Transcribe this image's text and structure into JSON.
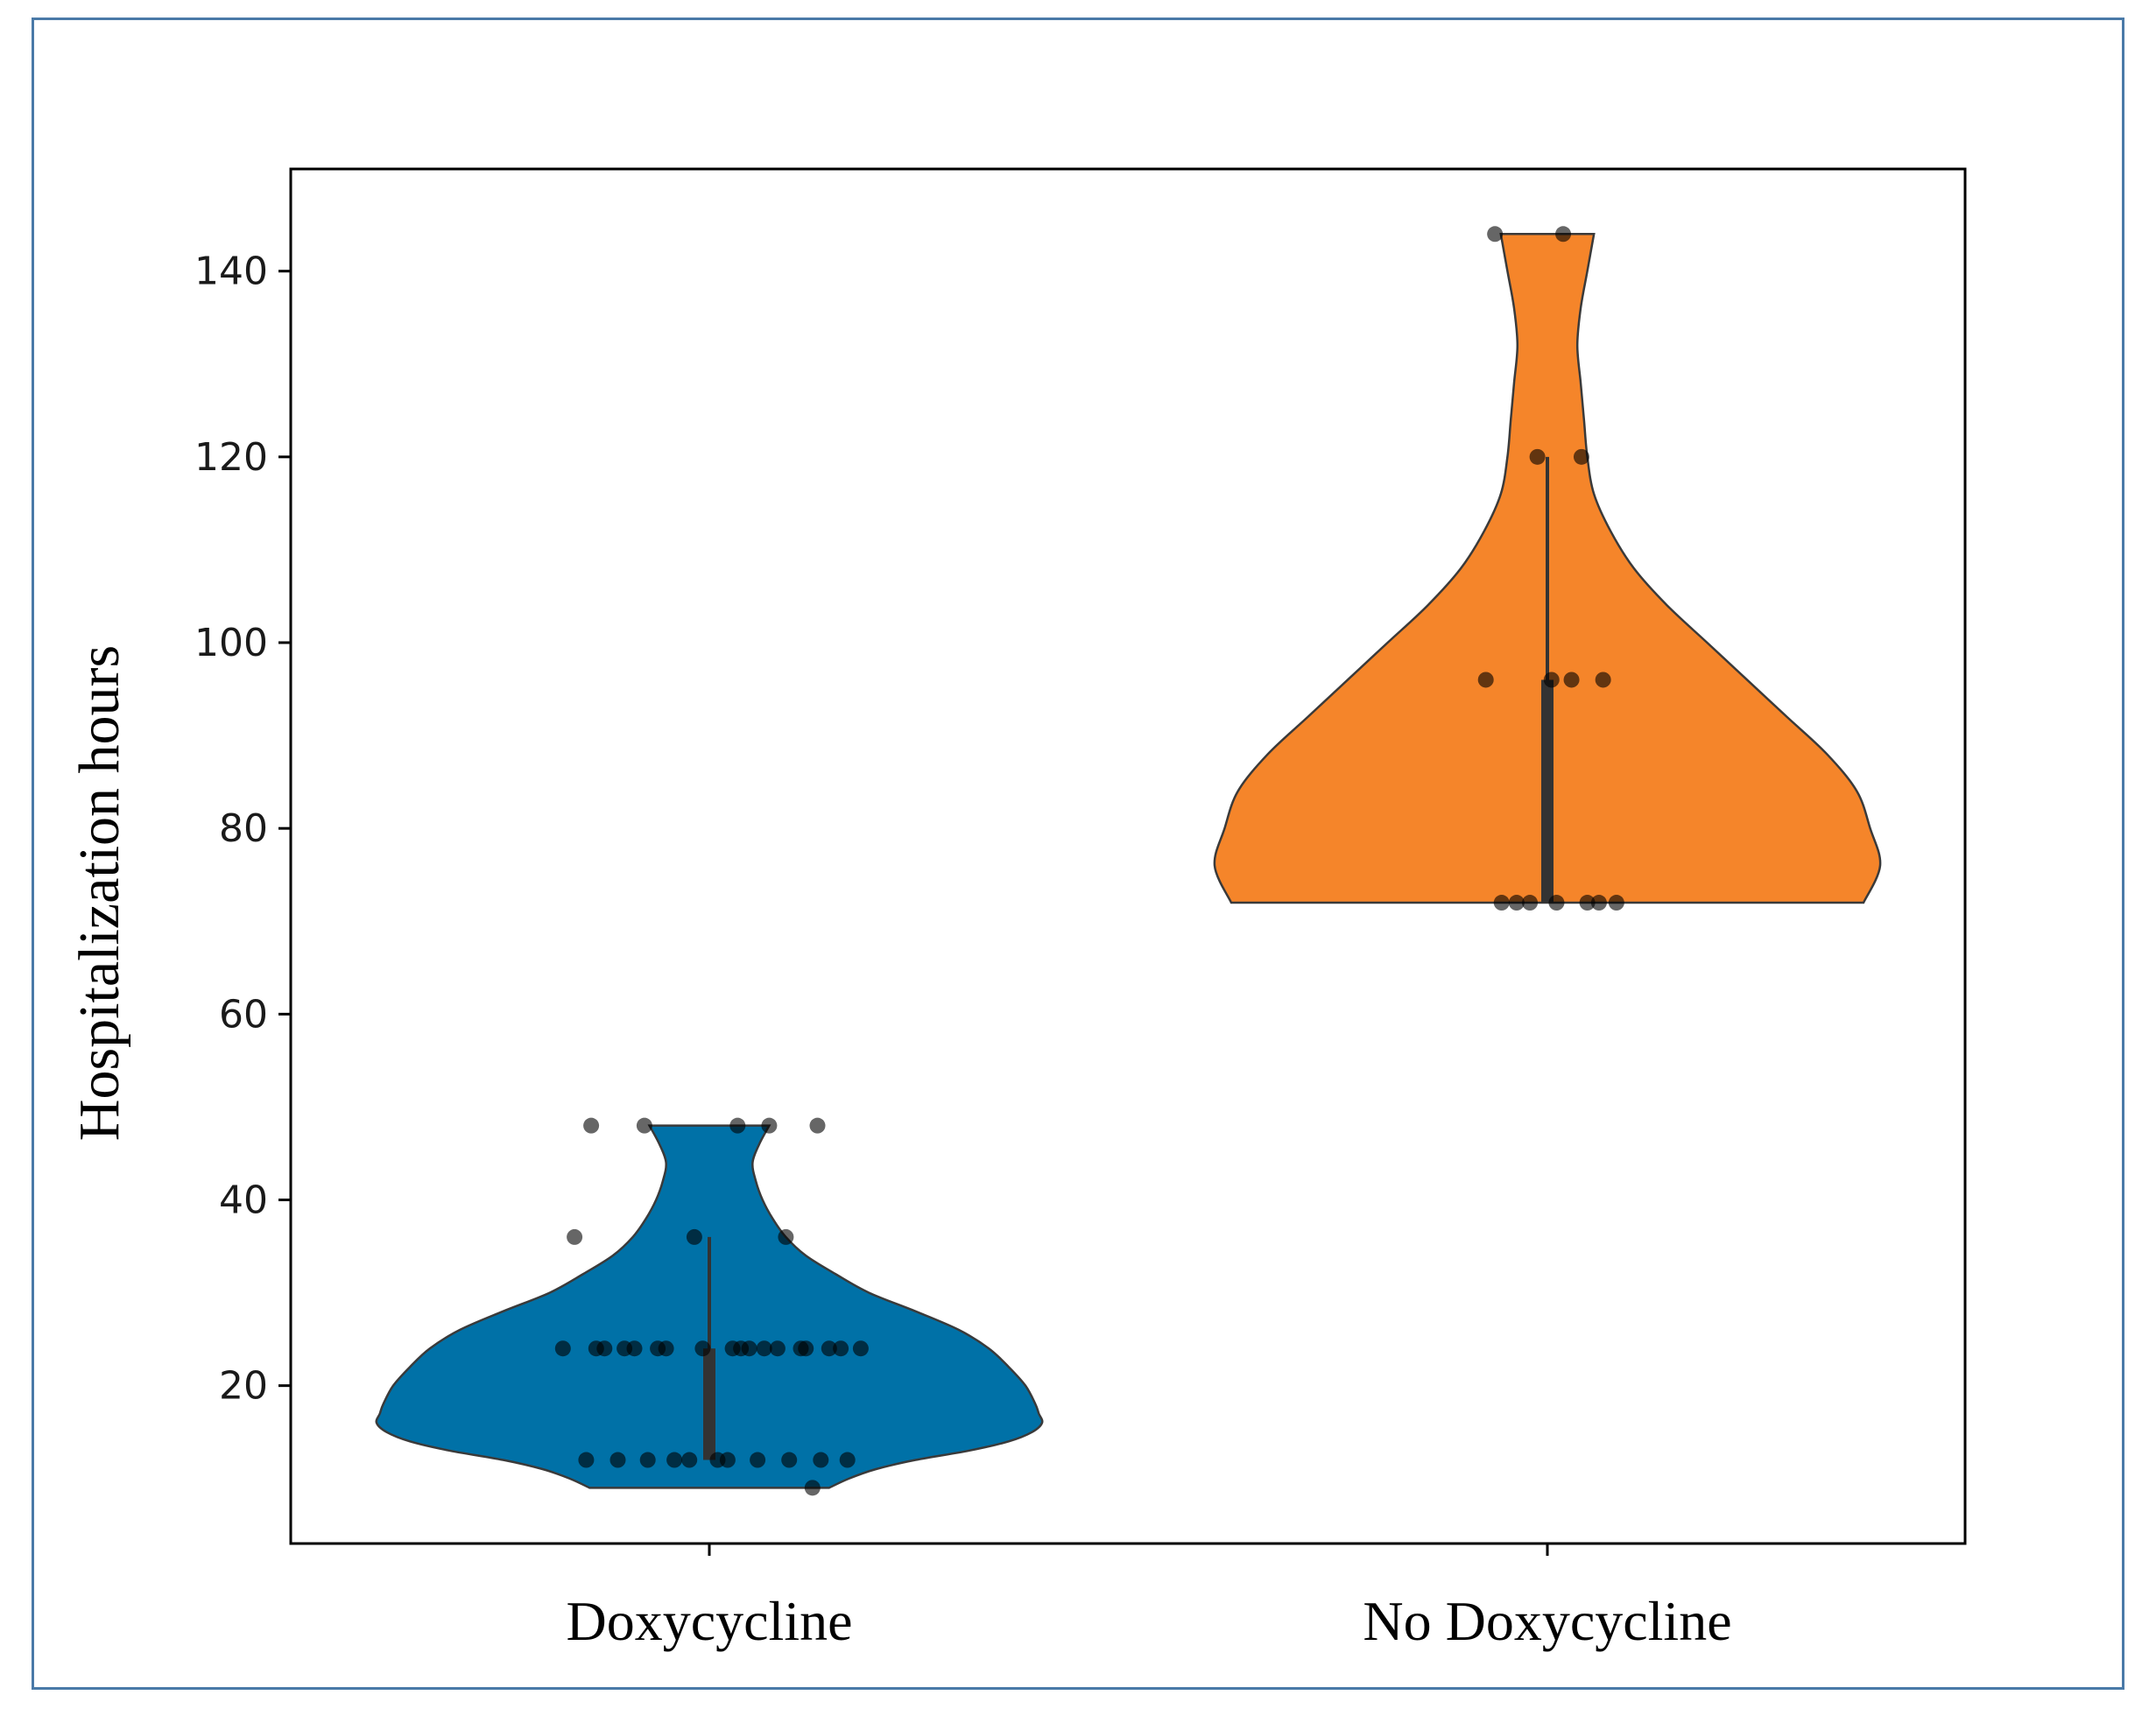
{
  "chart_data": {
    "type": "violin",
    "title": "",
    "xlabel": "",
    "ylabel": "Hospitalization hours",
    "categories": [
      "Doxycycline",
      "No Doxycycline"
    ],
    "ylim": [
      3,
      151
    ],
    "yticks": [
      "20",
      "40",
      "60",
      "80",
      "100",
      "120",
      "140"
    ],
    "grid": false,
    "series": [
      {
        "category": "Doxycycline",
        "color": "#0071a7",
        "min": 9,
        "max": 48,
        "q1": 12,
        "median": 24,
        "q3": 36,
        "density": [
          [
            9,
            0.36
          ],
          [
            10,
            0.42
          ],
          [
            11,
            0.5
          ],
          [
            12,
            0.62
          ],
          [
            13,
            0.78
          ],
          [
            14,
            0.9
          ],
          [
            15,
            0.97
          ],
          [
            16,
            1.0
          ],
          [
            17,
            0.99
          ],
          [
            18,
            0.98
          ],
          [
            20,
            0.95
          ],
          [
            22,
            0.9
          ],
          [
            24,
            0.84
          ],
          [
            26,
            0.75
          ],
          [
            28,
            0.62
          ],
          [
            30,
            0.48
          ],
          [
            32,
            0.38
          ],
          [
            34,
            0.29
          ],
          [
            36,
            0.23
          ],
          [
            38,
            0.19
          ],
          [
            40,
            0.16
          ],
          [
            42,
            0.14
          ],
          [
            44,
            0.13
          ],
          [
            46,
            0.15
          ],
          [
            48,
            0.18
          ]
        ],
        "points": [
          9,
          12,
          12,
          12,
          12,
          12,
          12,
          12,
          12,
          12,
          12,
          12,
          24,
          24,
          24,
          24,
          24,
          24,
          24,
          24,
          24,
          24,
          24,
          24,
          24,
          24,
          24,
          24,
          24,
          24,
          36,
          36,
          36,
          48,
          48,
          48,
          48,
          48
        ]
      },
      {
        "category": "No Doxycycline",
        "color": "#f5852a",
        "min": 72,
        "max": 144,
        "q1": 72,
        "median": 96,
        "q3": 120,
        "density": [
          [
            72,
            0.95
          ],
          [
            76,
            1.0
          ],
          [
            80,
            0.97
          ],
          [
            84,
            0.93
          ],
          [
            88,
            0.84
          ],
          [
            92,
            0.72
          ],
          [
            96,
            0.6
          ],
          [
            100,
            0.48
          ],
          [
            104,
            0.36
          ],
          [
            108,
            0.26
          ],
          [
            112,
            0.19
          ],
          [
            116,
            0.14
          ],
          [
            120,
            0.12
          ],
          [
            124,
            0.11
          ],
          [
            128,
            0.1
          ],
          [
            132,
            0.09
          ],
          [
            136,
            0.1
          ],
          [
            140,
            0.12
          ],
          [
            144,
            0.14
          ]
        ],
        "points": [
          72,
          72,
          72,
          72,
          72,
          72,
          72,
          96,
          96,
          96,
          96,
          120,
          120,
          144,
          144
        ]
      }
    ]
  }
}
